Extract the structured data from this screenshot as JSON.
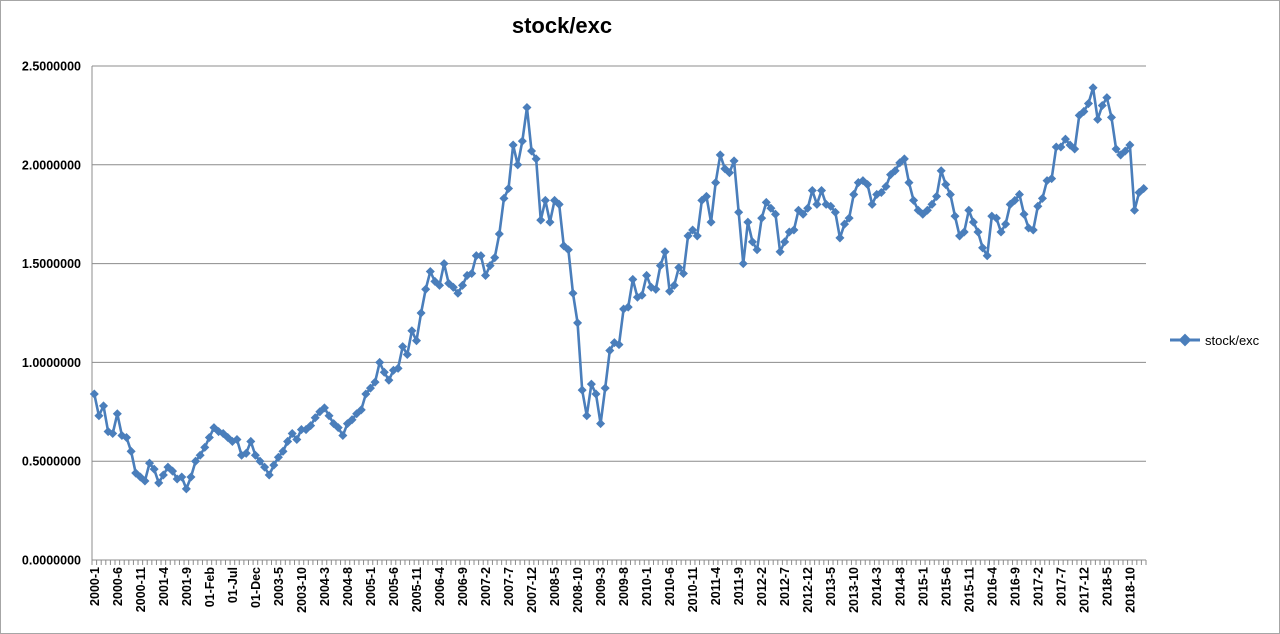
{
  "chart_data": {
    "type": "line",
    "title": "stock/exc",
    "xlabel": "",
    "ylabel": "",
    "ylim": [
      0,
      2.5
    ],
    "yticks": [
      "0.0000000",
      "0.5000000",
      "1.0000000",
      "1.5000000",
      "2.0000000",
      "2.5000000"
    ],
    "xtick_labels": [
      "2000-1",
      "2000-6",
      "2000-11",
      "2001-4",
      "2001-9",
      "01-Feb",
      "01-Jul",
      "01-Dec",
      "2003-5",
      "2003-10",
      "2004-3",
      "2004-8",
      "2005-1",
      "2005-6",
      "2005-11",
      "2006-4",
      "2006-9",
      "2007-2",
      "2007-7",
      "2007-12",
      "2008-5",
      "2008-10",
      "2009-3",
      "2009-8",
      "2010-1",
      "2010-6",
      "2010-11",
      "2011-4",
      "2011-9",
      "2012-2",
      "2012-7",
      "2012-12",
      "2013-5",
      "2013-10",
      "2014-3",
      "2014-8",
      "2015-1",
      "2015-6",
      "2015-11",
      "2016-4",
      "2016-9",
      "2017-2",
      "2017-7",
      "2017-12",
      "2018-5",
      "2018-10"
    ],
    "grid": "horizontal",
    "legend_position": "right",
    "color": "#4a7ebb",
    "series": [
      {
        "name": "stock/exc",
        "values": [
          0.84,
          0.73,
          0.78,
          0.65,
          0.64,
          0.74,
          0.63,
          0.62,
          0.55,
          0.44,
          0.42,
          0.4,
          0.49,
          0.46,
          0.39,
          0.43,
          0.47,
          0.45,
          0.41,
          0.42,
          0.36,
          0.42,
          0.5,
          0.53,
          0.57,
          0.62,
          0.67,
          0.65,
          0.64,
          0.62,
          0.6,
          0.61,
          0.53,
          0.54,
          0.6,
          0.53,
          0.5,
          0.47,
          0.43,
          0.48,
          0.52,
          0.55,
          0.6,
          0.64,
          0.61,
          0.66,
          0.66,
          0.68,
          0.72,
          0.75,
          0.77,
          0.73,
          0.69,
          0.67,
          0.63,
          0.69,
          0.71,
          0.74,
          0.76,
          0.84,
          0.87,
          0.9,
          1.0,
          0.95,
          0.91,
          0.96,
          0.97,
          1.08,
          1.04,
          1.16,
          1.11,
          1.25,
          1.37,
          1.46,
          1.41,
          1.39,
          1.5,
          1.4,
          1.38,
          1.35,
          1.39,
          1.44,
          1.45,
          1.54,
          1.54,
          1.44,
          1.49,
          1.53,
          1.65,
          1.83,
          1.88,
          2.1,
          2.0,
          2.12,
          2.29,
          2.07,
          2.03,
          1.72,
          1.82,
          1.71,
          1.82,
          1.8,
          1.59,
          1.57,
          1.35,
          1.2,
          0.86,
          0.73,
          0.89,
          0.84,
          0.69,
          0.87,
          1.06,
          1.1,
          1.09,
          1.27,
          1.28,
          1.42,
          1.33,
          1.34,
          1.44,
          1.38,
          1.37,
          1.49,
          1.56,
          1.36,
          1.39,
          1.48,
          1.45,
          1.64,
          1.67,
          1.64,
          1.82,
          1.84,
          1.71,
          1.91,
          2.05,
          1.98,
          1.96,
          2.02,
          1.76,
          1.5,
          1.71,
          1.61,
          1.57,
          1.73,
          1.81,
          1.78,
          1.75,
          1.56,
          1.61,
          1.66,
          1.67,
          1.77,
          1.75,
          1.78,
          1.87,
          1.8,
          1.87,
          1.8,
          1.79,
          1.76,
          1.63,
          1.7,
          1.73,
          1.85,
          1.91,
          1.92,
          1.9,
          1.8,
          1.85,
          1.86,
          1.89,
          1.95,
          1.97,
          2.01,
          2.03,
          1.91,
          1.82,
          1.77,
          1.75,
          1.77,
          1.8,
          1.84,
          1.97,
          1.9,
          1.85,
          1.74,
          1.64,
          1.66,
          1.77,
          1.71,
          1.66,
          1.58,
          1.54,
          1.74,
          1.73,
          1.66,
          1.7,
          1.8,
          1.82,
          1.85,
          1.75,
          1.68,
          1.67,
          1.79,
          1.83,
          1.92,
          1.93,
          2.09,
          2.09,
          2.13,
          2.1,
          2.08,
          2.25,
          2.27,
          2.31,
          2.39,
          2.23,
          2.3,
          2.34,
          2.24,
          2.08,
          2.05,
          2.07,
          2.1,
          1.77,
          1.86,
          1.88
        ]
      }
    ]
  }
}
